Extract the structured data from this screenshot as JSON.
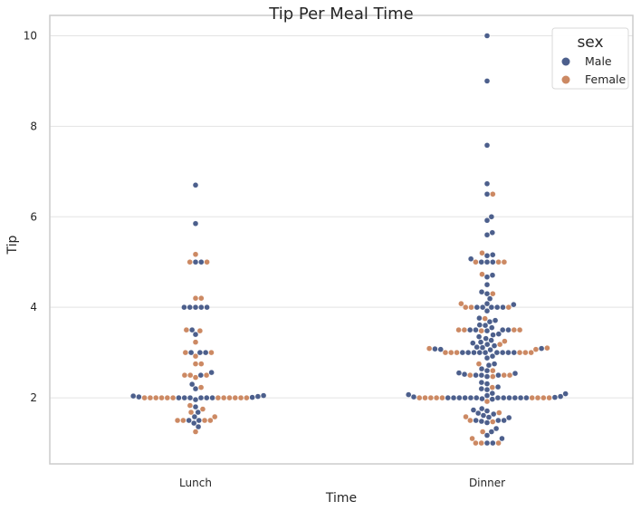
{
  "chart_data": {
    "type": "swarm",
    "title": "Tip Per Meal Time",
    "xlabel": "Time",
    "ylabel": "Tip",
    "categories": [
      "Lunch",
      "Dinner"
    ],
    "yticks": [
      "2",
      "4",
      "6",
      "8",
      "10"
    ],
    "ylim": [
      0.54,
      10.45
    ],
    "grid": "horizontal",
    "legend": {
      "title": "sex",
      "placement": "top-right",
      "entries": [
        {
          "name": "Male",
          "color": "#4c5f8c"
        },
        {
          "name": "Female",
          "color": "#cc8963"
        }
      ]
    },
    "series": [
      {
        "name": "Male",
        "color": "#4c5f8c",
        "values": {
          "Lunch": [
            6.7,
            5.85,
            5.0,
            5.0,
            4.0,
            4.0,
            4.0,
            4.0,
            4.0,
            3.5,
            3.4,
            3.0,
            3.0,
            3.0,
            2.56,
            2.5,
            2.3,
            2.2,
            2.05,
            2.04,
            2.03,
            2.02,
            2.01,
            2.0,
            2.0,
            2.0,
            2.0,
            2.0,
            2.0,
            1.96,
            1.8,
            1.68,
            1.58,
            1.5,
            1.44,
            1.36,
            1.5
          ],
          "Dinner": [
            10.0,
            9.0,
            7.58,
            6.73,
            6.5,
            6.0,
            5.92,
            5.65,
            5.6,
            5.16,
            5.14,
            5.07,
            5.0,
            5.0,
            5.0,
            4.71,
            4.67,
            4.5,
            4.34,
            4.3,
            4.19,
            4.08,
            4.06,
            4.0,
            4.0,
            4.0,
            4.0,
            4.0,
            3.92,
            3.76,
            3.71,
            3.68,
            3.61,
            3.6,
            3.55,
            3.5,
            3.5,
            3.5,
            3.5,
            3.48,
            3.41,
            3.39,
            3.35,
            3.31,
            3.27,
            3.23,
            3.21,
            3.18,
            3.15,
            3.12,
            3.11,
            3.09,
            3.08,
            3.07,
            3.06,
            3.0,
            3.0,
            3.0,
            3.0,
            3.0,
            3.0,
            3.0,
            3.0,
            3.0,
            2.92,
            2.88,
            2.75,
            2.72,
            2.64,
            2.6,
            2.55,
            2.54,
            2.52,
            2.5,
            2.5,
            2.5,
            2.47,
            2.34,
            2.31,
            2.24,
            2.2,
            2.18,
            2.1,
            2.09,
            2.07,
            2.05,
            2.03,
            2.02,
            2.01,
            2.0,
            2.0,
            2.0,
            2.0,
            2.0,
            2.0,
            2.0,
            2.0,
            2.0,
            2.0,
            2.0,
            2.0,
            1.98,
            1.97,
            1.76,
            1.73,
            1.71,
            1.66,
            1.64,
            1.61,
            1.57,
            1.56,
            1.5,
            1.5,
            1.5,
            1.48,
            1.45,
            1.32,
            1.25,
            1.17,
            1.1,
            1.0,
            1.0
          ]
        }
      },
      {
        "name": "Female",
        "color": "#cc8963",
        "values": {
          "Lunch": [
            5.17,
            5.0,
            5.0,
            4.2,
            4.2,
            3.5,
            3.48,
            3.23,
            3.0,
            3.0,
            2.92,
            2.75,
            2.75,
            2.5,
            2.5,
            2.5,
            2.45,
            2.23,
            2.0,
            2.0,
            2.0,
            2.0,
            2.0,
            2.0,
            2.0,
            2.0,
            2.0,
            2.0,
            2.0,
            2.0,
            1.83,
            1.75,
            1.68,
            1.58,
            1.5,
            1.5,
            1.5,
            1.5,
            1.25
          ],
          "Dinner": [
            6.5,
            5.2,
            5.0,
            5.0,
            5.0,
            4.73,
            4.3,
            4.08,
            4.0,
            4.0,
            4.0,
            3.75,
            3.5,
            3.5,
            3.5,
            3.5,
            3.48,
            3.25,
            3.18,
            3.1,
            3.09,
            3.07,
            3.0,
            3.0,
            3.0,
            3.0,
            3.0,
            3.0,
            2.75,
            2.6,
            2.5,
            2.5,
            2.5,
            2.47,
            2.23,
            2.0,
            2.0,
            2.0,
            2.0,
            2.0,
            2.0,
            2.0,
            2.0,
            2.0,
            1.92,
            1.67,
            1.58,
            1.5,
            1.47,
            1.25,
            1.1,
            1.0,
            1.0,
            1.0
          ]
        }
      }
    ]
  }
}
